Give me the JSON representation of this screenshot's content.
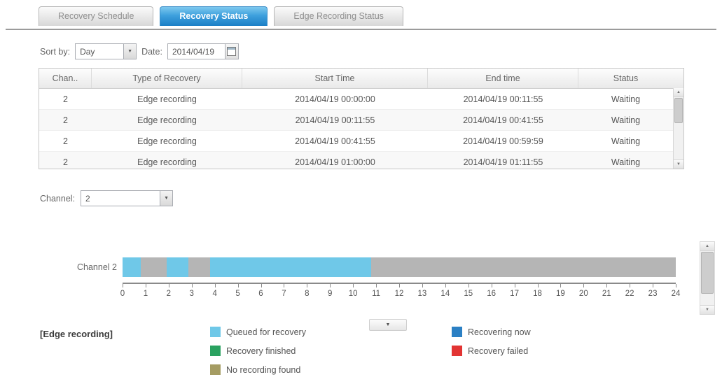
{
  "tabs": [
    {
      "label": "Recovery Schedule",
      "active": false
    },
    {
      "label": "Recovery Status",
      "active": true
    },
    {
      "label": "Edge Recording Status",
      "active": false
    }
  ],
  "filters": {
    "sort_by_label": "Sort by:",
    "sort_by_value": "Day",
    "date_label": "Date:",
    "date_value": "2014/04/19"
  },
  "table": {
    "columns": [
      "Chan..",
      "Type of Recovery",
      "Start Time",
      "End time",
      "Status"
    ],
    "rows": [
      [
        "2",
        "Edge recording",
        "2014/04/19 00:00:00",
        "2014/04/19 00:11:55",
        "Waiting"
      ],
      [
        "2",
        "Edge recording",
        "2014/04/19 00:11:55",
        "2014/04/19 00:41:55",
        "Waiting"
      ],
      [
        "2",
        "Edge recording",
        "2014/04/19 00:41:55",
        "2014/04/19 00:59:59",
        "Waiting"
      ],
      [
        "2",
        "Edge recording",
        "2014/04/19 01:00:00",
        "2014/04/19 01:11:55",
        "Waiting"
      ]
    ]
  },
  "channel": {
    "label": "Channel:",
    "value": "2"
  },
  "chart_data": {
    "type": "timeline",
    "title": "",
    "row_label": "Channel 2",
    "x_min": 0,
    "x_max": 24,
    "ticks": [
      0,
      1,
      2,
      3,
      4,
      5,
      6,
      7,
      8,
      9,
      10,
      11,
      12,
      13,
      14,
      15,
      16,
      17,
      18,
      19,
      20,
      21,
      22,
      23,
      24
    ],
    "colors": {
      "queued": "#6fc8e8",
      "recovering": "#2b80c4",
      "finished": "#2aa260",
      "failed": "#e23433",
      "no_recording": "#a59c63",
      "none": "#b5b5b5"
    },
    "segments": [
      {
        "start": 0,
        "end": 0.8,
        "status": "queued"
      },
      {
        "start": 0.8,
        "end": 1.9,
        "status": "none"
      },
      {
        "start": 1.9,
        "end": 2.85,
        "status": "queued"
      },
      {
        "start": 2.85,
        "end": 3.8,
        "status": "none"
      },
      {
        "start": 3.8,
        "end": 10.8,
        "status": "queued"
      },
      {
        "start": 10.8,
        "end": 24,
        "status": "none"
      }
    ]
  },
  "legend": {
    "title": "[Edge recording]",
    "items": [
      {
        "label": "Queued for recovery",
        "color": "#6fc8e8"
      },
      {
        "label": "Recovering now",
        "color": "#2b80c4"
      },
      {
        "label": "Recovery finished",
        "color": "#2aa260"
      },
      {
        "label": "Recovery failed",
        "color": "#e23433"
      },
      {
        "label": "No recording found",
        "color": "#a59c63"
      }
    ]
  },
  "icons": {
    "dropdown_arrow": "▼",
    "scroll_up": "▲",
    "scroll_down": "▼"
  }
}
